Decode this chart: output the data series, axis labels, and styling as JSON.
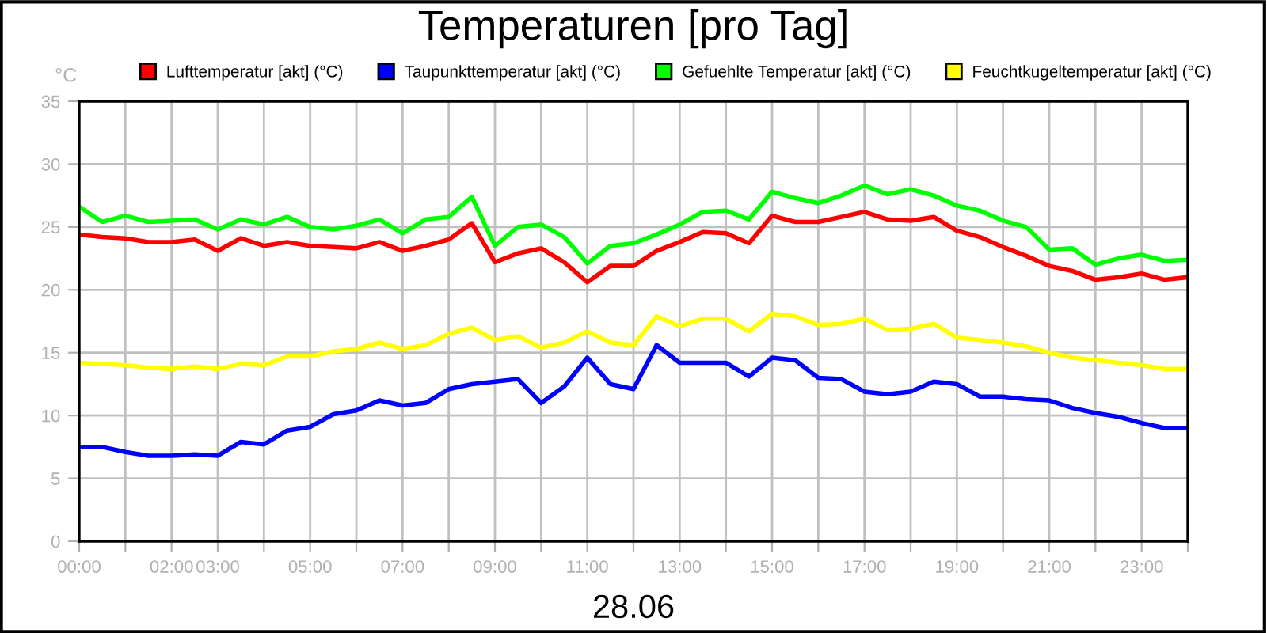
{
  "chart_data": {
    "type": "line",
    "title": "Temperaturen [pro Tag]",
    "xlabel": "28.06",
    "ylabel": "°C",
    "x": [
      0,
      0.5,
      1,
      1.5,
      2,
      2.5,
      3,
      3.5,
      4,
      4.5,
      5,
      5.5,
      6,
      6.5,
      7,
      7.5,
      8,
      8.5,
      9,
      9.5,
      10,
      10.5,
      11,
      11.5,
      12,
      12.5,
      13,
      13.5,
      14,
      14.5,
      15,
      15.5,
      16,
      16.5,
      17,
      17.5,
      18,
      18.5,
      19,
      19.5,
      20,
      20.5,
      21,
      21.5,
      22,
      22.5,
      23,
      23.5,
      24
    ],
    "series": [
      {
        "name": "Lufttemperatur [akt] (°C)",
        "color": "#ff0000",
        "values": [
          24.4,
          24.2,
          24.1,
          23.8,
          23.8,
          24.0,
          23.1,
          24.1,
          23.5,
          23.8,
          23.5,
          23.4,
          23.3,
          23.8,
          23.1,
          23.5,
          24.0,
          25.3,
          22.2,
          22.9,
          23.3,
          22.2,
          20.6,
          21.9,
          21.9,
          23.1,
          23.8,
          24.6,
          24.5,
          23.7,
          25.9,
          25.4,
          25.4,
          25.8,
          26.2,
          25.6,
          25.5,
          25.8,
          24.7,
          24.2,
          23.4,
          22.7,
          21.9,
          21.5,
          20.8,
          21.0,
          21.3,
          20.8,
          21.0
        ]
      },
      {
        "name": "Taupunkttemperatur [akt] (°C)",
        "color": "#0000ff",
        "values": [
          7.5,
          7.5,
          7.1,
          6.8,
          6.8,
          6.9,
          6.8,
          7.9,
          7.7,
          8.8,
          9.1,
          10.1,
          10.4,
          11.2,
          10.8,
          11.0,
          12.1,
          12.5,
          12.7,
          12.9,
          11.0,
          12.3,
          14.6,
          12.5,
          12.1,
          15.6,
          14.2,
          14.2,
          14.2,
          13.1,
          14.6,
          14.4,
          13.0,
          12.9,
          11.9,
          11.7,
          11.9,
          12.7,
          12.5,
          11.5,
          11.5,
          11.3,
          11.2,
          10.6,
          10.2,
          9.9,
          9.4,
          9.0,
          9.0
        ]
      },
      {
        "name": "Gefuehlte Temperatur [akt] (°C)",
        "color": "#00ff00",
        "values": [
          26.6,
          25.4,
          25.9,
          25.4,
          25.5,
          25.6,
          24.8,
          25.6,
          25.2,
          25.8,
          25.0,
          24.8,
          25.1,
          25.6,
          24.5,
          25.6,
          25.8,
          27.4,
          23.5,
          25.0,
          25.2,
          24.2,
          22.1,
          23.5,
          23.7,
          24.4,
          25.2,
          26.2,
          26.3,
          25.6,
          27.8,
          27.3,
          26.9,
          27.5,
          28.3,
          27.6,
          28.0,
          27.5,
          26.7,
          26.3,
          25.5,
          25.0,
          23.2,
          23.3,
          22.0,
          22.5,
          22.8,
          22.3,
          22.4
        ]
      },
      {
        "name": "Feuchtkugeltemperatur [akt] (°C)",
        "color": "#ffff00",
        "values": [
          14.2,
          14.1,
          14.0,
          13.8,
          13.7,
          13.9,
          13.7,
          14.1,
          14.0,
          14.7,
          14.7,
          15.1,
          15.3,
          15.8,
          15.3,
          15.6,
          16.5,
          17.0,
          16.0,
          16.3,
          15.4,
          15.8,
          16.7,
          15.8,
          15.6,
          17.9,
          17.1,
          17.7,
          17.7,
          16.7,
          18.1,
          17.9,
          17.2,
          17.3,
          17.7,
          16.8,
          16.9,
          17.3,
          16.2,
          16.0,
          15.8,
          15.5,
          15.0,
          14.6,
          14.4,
          14.2,
          14.0,
          13.7,
          13.7
        ]
      }
    ],
    "xlim": [
      0,
      24
    ],
    "xticks": [
      {
        "value": 0,
        "label": "00:00"
      },
      {
        "value": 1,
        "label": null
      },
      {
        "value": 2,
        "label": "02:00"
      },
      {
        "value": 3,
        "label": "03:00"
      },
      {
        "value": 4,
        "label": null
      },
      {
        "value": 5,
        "label": "05:00"
      },
      {
        "value": 6,
        "label": null
      },
      {
        "value": 7,
        "label": "07:00"
      },
      {
        "value": 8,
        "label": null
      },
      {
        "value": 9,
        "label": "09:00"
      },
      {
        "value": 10,
        "label": null
      },
      {
        "value": 11,
        "label": "11:00"
      },
      {
        "value": 12,
        "label": null
      },
      {
        "value": 13,
        "label": "13:00"
      },
      {
        "value": 14,
        "label": null
      },
      {
        "value": 15,
        "label": "15:00"
      },
      {
        "value": 16,
        "label": null
      },
      {
        "value": 17,
        "label": "17:00"
      },
      {
        "value": 18,
        "label": null
      },
      {
        "value": 19,
        "label": "19:00"
      },
      {
        "value": 20,
        "label": null
      },
      {
        "value": 21,
        "label": "21:00"
      },
      {
        "value": 22,
        "label": null
      },
      {
        "value": 23,
        "label": "23:00"
      },
      {
        "value": 24,
        "label": null
      }
    ],
    "ylim": [
      0,
      35
    ],
    "yticks": [
      0,
      5,
      10,
      15,
      20,
      25,
      30,
      35
    ],
    "grid": true,
    "legend": "top",
    "marker": "none",
    "line_style": "solid"
  }
}
